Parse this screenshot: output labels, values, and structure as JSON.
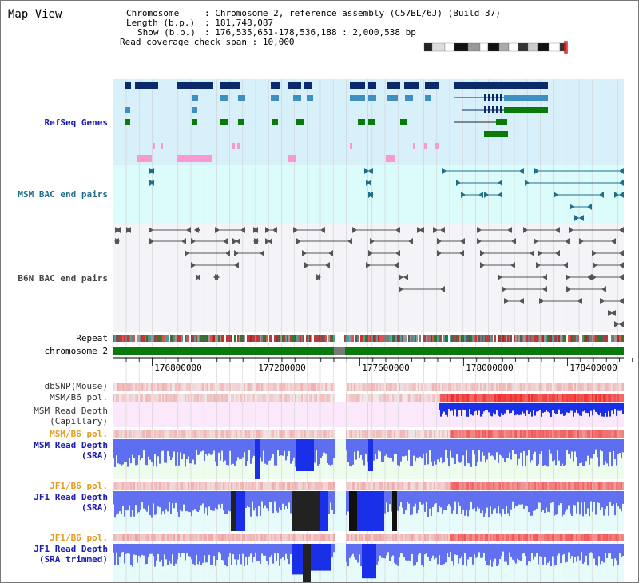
{
  "app": {
    "title": "Map View"
  },
  "info": {
    "chromosome_key": "Chromosome",
    "chromosome_val": ": Chromosome 2, reference assembly (C57BL/6J) (Build 37)",
    "length_key": "Length (b.p.)",
    "length_val": ": 181,748,087",
    "show_key": "Show (b.p.)",
    "show_val": ": 176,535,651-178,536,188 : 2,000,538 bp",
    "coverage_key": "Read coverage check span",
    "coverage_val": ": 10,000"
  },
  "tracks": [
    {
      "name": "refseq",
      "label": "RefSeq Genes",
      "color": "#1b1bb0"
    },
    {
      "name": "msm-bac",
      "label": "MSM BAC end pairs",
      "color": "#1f6f8a"
    },
    {
      "name": "b6n-bac",
      "label": "B6N BAC end pairs",
      "color": "#333333"
    },
    {
      "name": "repeat",
      "label": "Repeat",
      "color": "#000000"
    },
    {
      "name": "chromosome",
      "label": "chromosome 2",
      "color": "#000000"
    },
    {
      "name": "dbsnp",
      "label": "dbSNP(Mouse)",
      "color": "#333333"
    },
    {
      "name": "msm-b6-pol-1",
      "label": "MSM/B6 pol.",
      "color": "#333333"
    },
    {
      "name": "msm-depth-cap-1",
      "label": "MSM Read Depth",
      "color": "#333333"
    },
    {
      "name": "msm-depth-cap-2",
      "label": "(Capillary)",
      "color": "#333333"
    },
    {
      "name": "msm-b6-pol-2",
      "label": "MSM/B6 pol.",
      "color": "#e89a1a"
    },
    {
      "name": "msm-depth-sra-1",
      "label": "MSM Read Depth",
      "color": "#1b1bb0"
    },
    {
      "name": "msm-depth-sra-2",
      "label": "(SRA)",
      "color": "#1b1bb0"
    },
    {
      "name": "jf1-b6-pol-1",
      "label": "JF1/B6 pol.",
      "color": "#e89a1a"
    },
    {
      "name": "jf1-depth-sra-1",
      "label": "JF1 Read Depth",
      "color": "#1b1bb0"
    },
    {
      "name": "jf1-depth-sra-2",
      "label": "(SRA)",
      "color": "#1b1bb0"
    },
    {
      "name": "jf1-b6-pol-2",
      "label": "JF1/B6 pol.",
      "color": "#e89a1a"
    },
    {
      "name": "jf1-depth-trim-1",
      "label": "JF1 Read Depth",
      "color": "#1b1bb0"
    },
    {
      "name": "jf1-depth-trim-2",
      "label": "(SRA trimmed)",
      "color": "#1b1bb0"
    }
  ],
  "ruler": {
    "ticks": [
      "176800000",
      "177200000",
      "177600000",
      "178000000",
      "178400000"
    ]
  },
  "colors": {
    "refseq_bg": "#d8f0fa",
    "msm_bg": "#dcfbfb",
    "b6n_bg": "#f3f3f8",
    "chrom_green": "#0a7a0a",
    "chrom_gap": "#7a7a7a",
    "gene_navy": "#0a2a6a",
    "gene_lightblue": "#3f8fc0",
    "gene_green": "#0a7a0a",
    "pink": "#f89ad0",
    "depth_blue": "#1020e0",
    "pol_red": "#e02020"
  }
}
